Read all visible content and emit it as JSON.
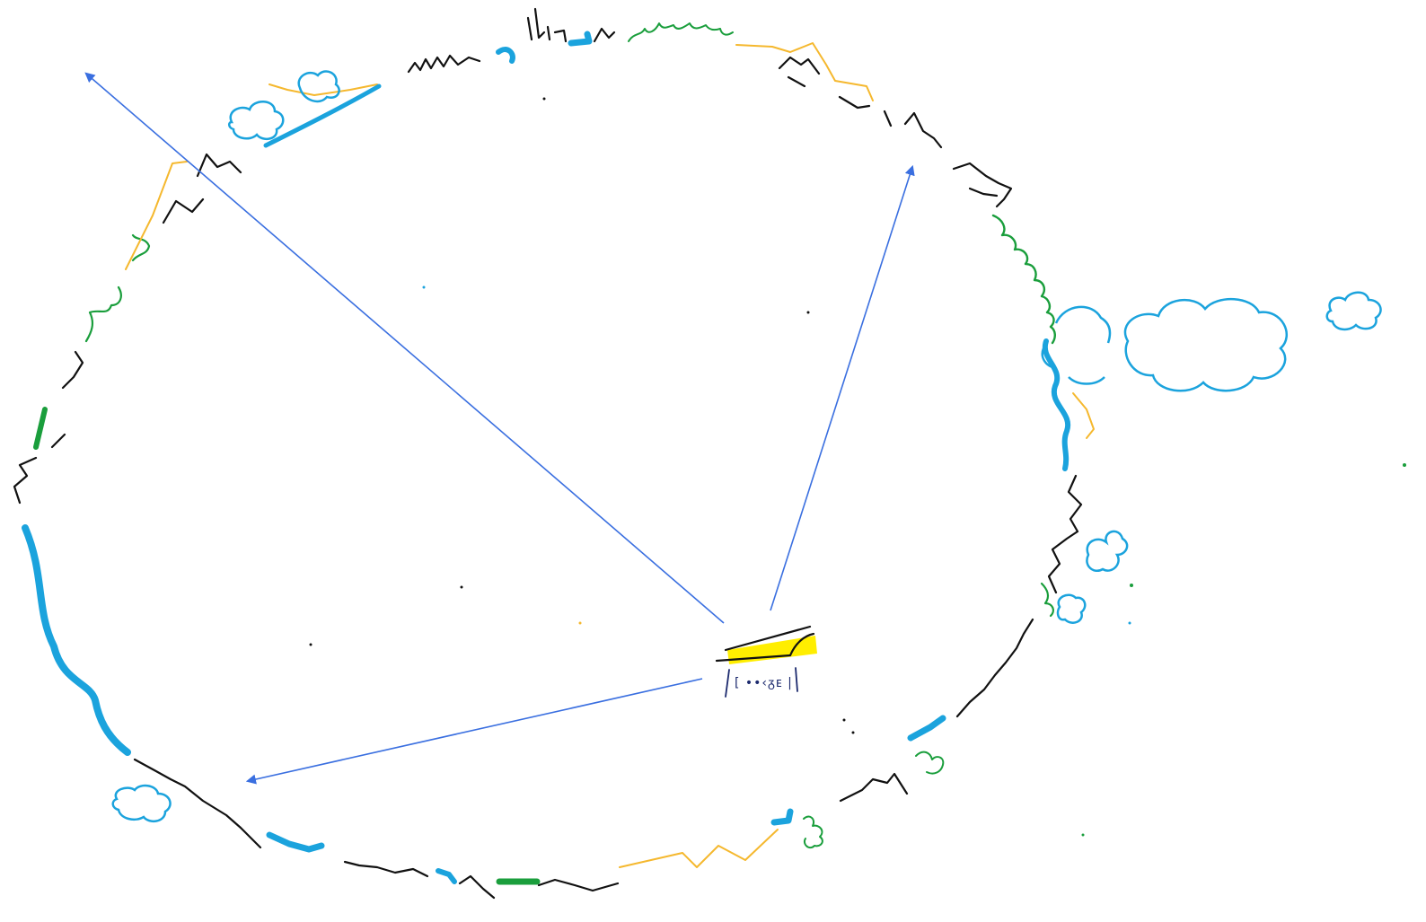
{
  "canvas": {
    "background": "#ffffff",
    "ink_colors": {
      "black": "#111111",
      "blue": "#1ba3dd",
      "green": "#1a9e3c",
      "yellow": "#f5b82e",
      "arrow": "#3a6fe0",
      "highlight": "#ffee00"
    }
  },
  "sketch": {
    "center_label": "[ ••‹ᵹᴇ |",
    "arrow_count": 3,
    "clouds": [
      "cloud-large-right",
      "cloud-small-far-right",
      "cloud-small-bottom-left",
      "cloud-small-top-left",
      "cloud-small-right-mid"
    ]
  }
}
